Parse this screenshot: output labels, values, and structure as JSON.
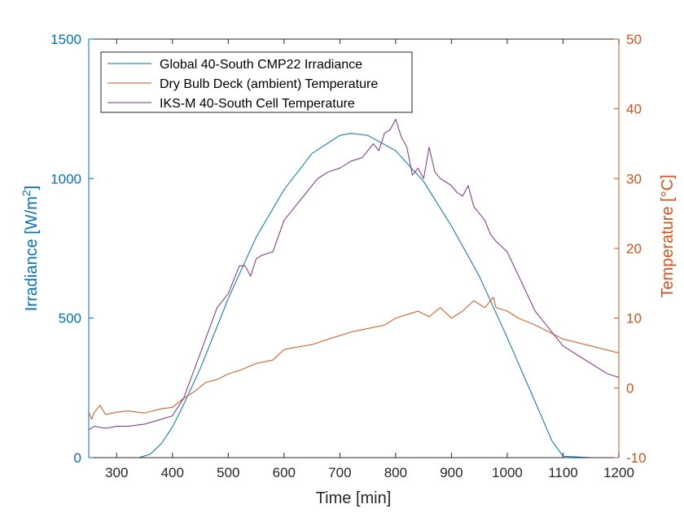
{
  "chart_data": {
    "type": "line",
    "title": "",
    "xlabel": "Time [min]",
    "ylabel_left": {
      "text": "Irradiance [W/m",
      "sup": "2",
      "end": "]"
    },
    "ylabel_right": "Temperature [°C]",
    "xlim": [
      250,
      1200
    ],
    "ylim_left": [
      0,
      1500
    ],
    "ylim_right": [
      -10,
      50
    ],
    "x_ticks": [
      300,
      400,
      500,
      600,
      700,
      800,
      900,
      1000,
      1100,
      1200
    ],
    "y_ticks_left": [
      0,
      500,
      1000,
      1500
    ],
    "y_ticks_right": [
      -10,
      0,
      10,
      20,
      30,
      40,
      50
    ],
    "grid": false,
    "legend_position": "top-left",
    "colors": {
      "left_axis": "#0072BD",
      "right_axis": "#D95319",
      "purple": "#7E2F8E",
      "axes": "#262626"
    },
    "series": [
      {
        "name": "Global 40-South CMP22 Irradiance",
        "axis": "left",
        "color": "#0072BD",
        "x": [
          250,
          300,
          340,
          360,
          380,
          400,
          420,
          450,
          500,
          550,
          600,
          650,
          700,
          720,
          750,
          800,
          850,
          900,
          950,
          1000,
          1050,
          1080,
          1100,
          1150,
          1200
        ],
        "y": [
          0,
          0,
          0,
          12,
          50,
          110,
          190,
          320,
          570,
          790,
          960,
          1090,
          1155,
          1162,
          1155,
          1100,
          990,
          830,
          650,
          430,
          200,
          60,
          5,
          0,
          0
        ]
      },
      {
        "name": "Dry Bulb Deck (ambient) Temperature",
        "axis": "right",
        "color": "#D95319",
        "x": [
          250,
          255,
          260,
          270,
          280,
          300,
          320,
          350,
          380,
          400,
          420,
          440,
          460,
          480,
          500,
          520,
          550,
          580,
          600,
          620,
          650,
          680,
          700,
          720,
          750,
          780,
          800,
          820,
          840,
          860,
          880,
          900,
          920,
          940,
          960,
          975,
          980,
          1000,
          1020,
          1050,
          1100,
          1150,
          1200
        ],
        "y": [
          -3.5,
          -4.5,
          -3.5,
          -2.5,
          -3.8,
          -3.5,
          -3.3,
          -3.6,
          -3.0,
          -2.8,
          -1.5,
          -0.5,
          0.8,
          1.2,
          2.0,
          2.5,
          3.5,
          4.0,
          5.5,
          5.8,
          6.2,
          7.0,
          7.5,
          8.0,
          8.5,
          9.0,
          10.0,
          10.5,
          11.0,
          10.2,
          11.5,
          10.0,
          11.0,
          12.5,
          11.5,
          13.0,
          11.5,
          11.0,
          10.0,
          9.0,
          7.0,
          6.0,
          5.0
        ]
      },
      {
        "name": "IKS-M 40-South Cell Temperature",
        "axis": "right",
        "color": "#7E2F8E",
        "x": [
          250,
          260,
          280,
          300,
          320,
          350,
          380,
          400,
          420,
          450,
          480,
          500,
          520,
          530,
          540,
          550,
          560,
          580,
          600,
          620,
          640,
          660,
          680,
          700,
          720,
          740,
          760,
          770,
          780,
          790,
          800,
          810,
          820,
          830,
          840,
          850,
          860,
          870,
          880,
          890,
          900,
          910,
          920,
          930,
          940,
          950,
          960,
          970,
          980,
          1000,
          1050,
          1100,
          1150,
          1180,
          1200
        ],
        "y": [
          -6.0,
          -5.5,
          -5.8,
          -5.5,
          -5.5,
          -5.2,
          -4.5,
          -4.0,
          -1.5,
          5.0,
          11.5,
          13.5,
          17.5,
          17.5,
          16.0,
          18.5,
          19.0,
          19.5,
          24.0,
          26.0,
          28.0,
          30.0,
          31.0,
          31.5,
          32.5,
          33.0,
          35.0,
          34.0,
          36.5,
          37.0,
          38.5,
          36.0,
          34.5,
          30.5,
          31.5,
          30.0,
          34.5,
          31.0,
          30.0,
          29.5,
          29.0,
          28.0,
          27.5,
          29.0,
          26.0,
          25.0,
          24.0,
          22.0,
          21.0,
          19.5,
          11.0,
          6.0,
          3.5,
          2.0,
          1.5
        ]
      }
    ]
  }
}
